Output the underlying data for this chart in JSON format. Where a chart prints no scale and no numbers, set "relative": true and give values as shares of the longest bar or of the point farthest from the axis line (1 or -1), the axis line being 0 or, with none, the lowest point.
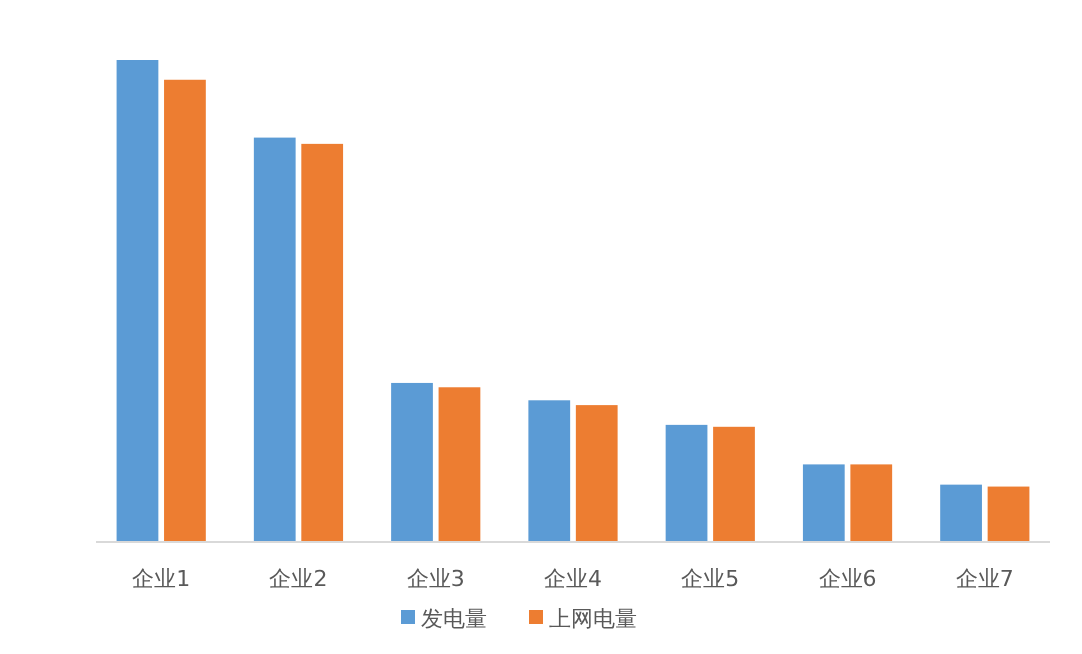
{
  "chart_data": {
    "type": "bar",
    "relative": true,
    "categories": [
      "企业1",
      "企业2",
      "企业3",
      "企业4",
      "企业5",
      "企业6",
      "企业7"
    ],
    "series": [
      {
        "name": "发电量",
        "color": "#5b9bd5",
        "values": [
          1,
          0.839,
          0.33,
          0.294,
          0.243,
          0.161,
          0.119
        ]
      },
      {
        "name": "上网电量",
        "color": "#ed7d31",
        "values": [
          0.959,
          0.826,
          0.321,
          0.284,
          0.239,
          0.161,
          0.115
        ]
      }
    ],
    "legend": "bottom"
  }
}
